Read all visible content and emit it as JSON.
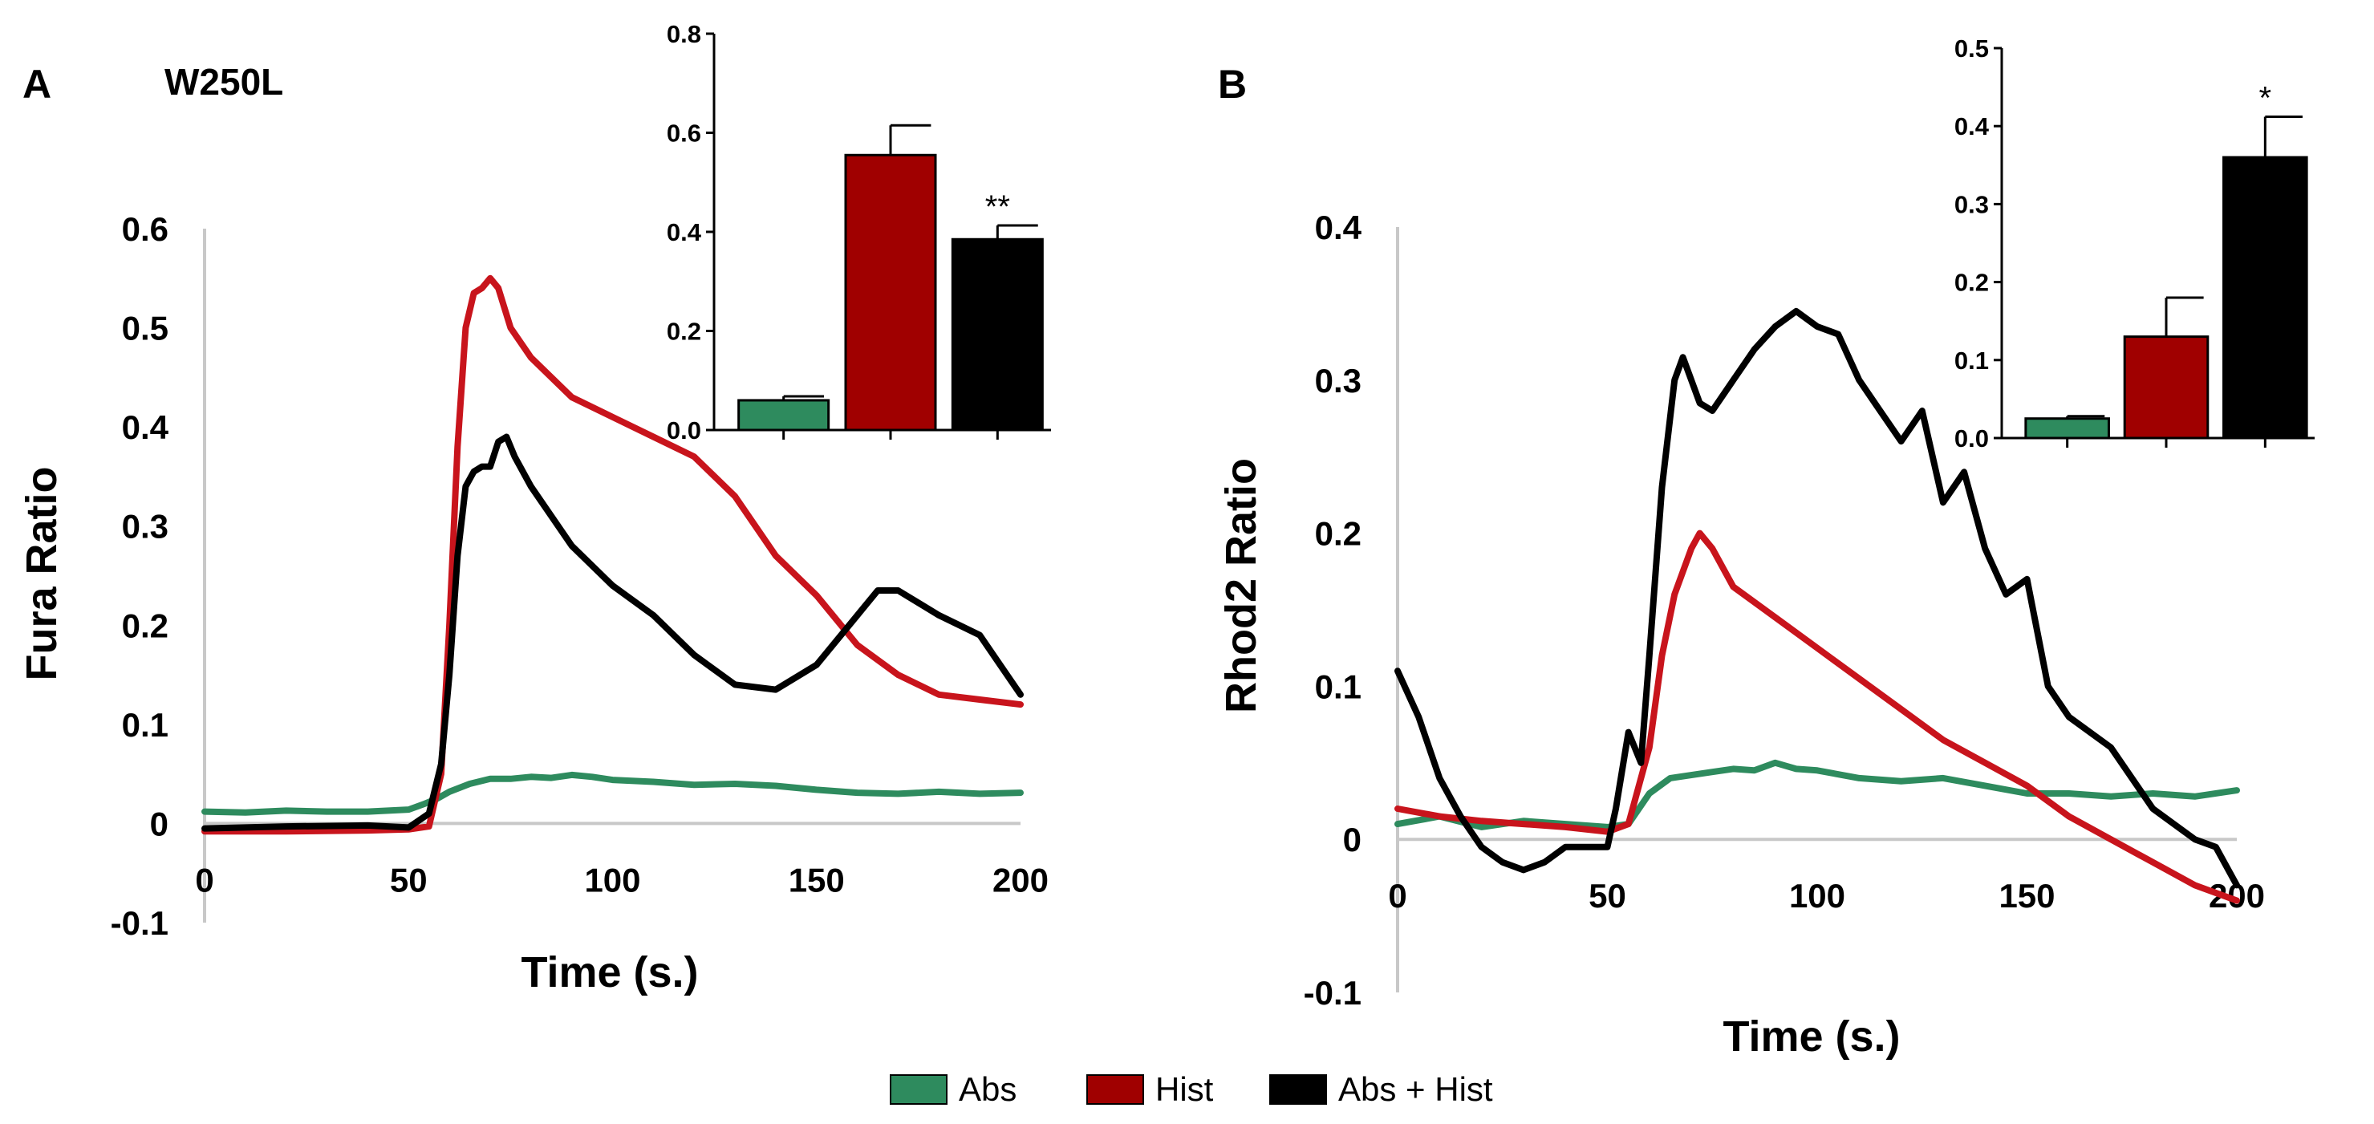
{
  "colors": {
    "abs": "#2e8b5e",
    "hist": "#c8141c",
    "abs_hist": "#000000",
    "hist_bar": "#a00000",
    "grid_axis": "#c8c8c8"
  },
  "legend": [
    {
      "label": "Abs",
      "color": "#2e8b5e"
    },
    {
      "label": "Hist",
      "color": "#a00000"
    },
    {
      "label": "Abs + Hist",
      "color": "#000000"
    }
  ],
  "chart_data": [
    {
      "id": "A",
      "panel_label": "A",
      "subtitle": "W250L",
      "type": "line",
      "xlabel": "Time (s.)",
      "ylabel": "Fura Ratio",
      "xlim": [
        0,
        200
      ],
      "ylim": [
        -0.1,
        0.6
      ],
      "xticks": [
        "0",
        "50",
        "100",
        "150",
        "200"
      ],
      "yticks": [
        "-0.1",
        "0",
        "0.1",
        "0.2",
        "0.3",
        "0.4",
        "0.5",
        "0.6"
      ],
      "series": [
        {
          "name": "Abs",
          "color": "#2e8b5e",
          "x": [
            0,
            10,
            20,
            30,
            40,
            50,
            54,
            57,
            60,
            65,
            70,
            75,
            80,
            85,
            90,
            95,
            100,
            110,
            120,
            130,
            140,
            150,
            160,
            170,
            180,
            190,
            200
          ],
          "y": [
            0.012,
            0.011,
            0.013,
            0.012,
            0.012,
            0.014,
            0.02,
            0.025,
            0.032,
            0.04,
            0.045,
            0.045,
            0.047,
            0.046,
            0.049,
            0.047,
            0.044,
            0.042,
            0.039,
            0.04,
            0.038,
            0.034,
            0.031,
            0.03,
            0.032,
            0.03,
            0.031
          ]
        },
        {
          "name": "Hist",
          "color": "#c8141c",
          "x": [
            0,
            20,
            40,
            50,
            55,
            58,
            60,
            62,
            64,
            66,
            68,
            70,
            72,
            75,
            80,
            90,
            100,
            110,
            120,
            130,
            140,
            150,
            160,
            170,
            180,
            190,
            200
          ],
          "y": [
            -0.008,
            -0.008,
            -0.007,
            -0.006,
            -0.003,
            0.05,
            0.2,
            0.38,
            0.5,
            0.535,
            0.54,
            0.55,
            0.54,
            0.5,
            0.47,
            0.43,
            0.41,
            0.39,
            0.37,
            0.33,
            0.27,
            0.23,
            0.18,
            0.15,
            0.13,
            0.125,
            0.12
          ]
        },
        {
          "name": "Abs + Hist",
          "color": "#000000",
          "x": [
            0,
            20,
            40,
            50,
            55,
            58,
            60,
            62,
            64,
            66,
            68,
            70,
            72,
            74,
            76,
            80,
            90,
            100,
            110,
            120,
            130,
            140,
            150,
            160,
            165,
            170,
            180,
            190,
            195,
            200
          ],
          "y": [
            -0.005,
            -0.003,
            -0.002,
            -0.004,
            0.01,
            0.06,
            0.15,
            0.27,
            0.34,
            0.355,
            0.36,
            0.36,
            0.385,
            0.39,
            0.37,
            0.34,
            0.28,
            0.24,
            0.21,
            0.17,
            0.14,
            0.135,
            0.16,
            0.21,
            0.235,
            0.235,
            0.21,
            0.19,
            0.16,
            0.13
          ]
        }
      ],
      "inset": {
        "type": "bar",
        "categories": [
          "Abs",
          "Hist",
          "Abs + Hist"
        ],
        "values": [
          0.06,
          0.555,
          0.385
        ],
        "errors": [
          0.008,
          0.06,
          0.028
        ],
        "colors": [
          "#2e8b5e",
          "#a00000",
          "#000000"
        ],
        "ylim": [
          0,
          0.8
        ],
        "yticks": [
          "0.0",
          "0.2",
          "0.4",
          "0.6",
          "0.8"
        ],
        "significance": [
          "",
          "",
          "**"
        ]
      }
    },
    {
      "id": "B",
      "panel_label": "B",
      "subtitle": "",
      "type": "line",
      "xlabel": "Time (s.)",
      "ylabel": "Rhod2 Ratio",
      "xlim": [
        0,
        200
      ],
      "ylim": [
        -0.1,
        0.4
      ],
      "xticks": [
        "0",
        "50",
        "100",
        "150",
        "200"
      ],
      "yticks": [
        "-0.1",
        "0",
        "0.1",
        "0.2",
        "0.3",
        "0.4"
      ],
      "series": [
        {
          "name": "Abs",
          "color": "#2e8b5e",
          "x": [
            0,
            10,
            20,
            30,
            40,
            50,
            55,
            60,
            65,
            70,
            75,
            80,
            85,
            90,
            95,
            100,
            110,
            120,
            130,
            140,
            150,
            160,
            170,
            180,
            190,
            200
          ],
          "y": [
            0.01,
            0.015,
            0.008,
            0.012,
            0.01,
            0.008,
            0.01,
            0.03,
            0.04,
            0.042,
            0.044,
            0.046,
            0.045,
            0.05,
            0.046,
            0.045,
            0.04,
            0.038,
            0.04,
            0.035,
            0.03,
            0.03,
            0.028,
            0.03,
            0.028,
            0.032
          ]
        },
        {
          "name": "Hist",
          "color": "#c8141c",
          "x": [
            0,
            10,
            20,
            30,
            40,
            50,
            55,
            60,
            63,
            66,
            70,
            72,
            75,
            80,
            90,
            100,
            110,
            120,
            130,
            140,
            150,
            160,
            170,
            180,
            190,
            200
          ],
          "y": [
            0.02,
            0.015,
            0.012,
            0.01,
            0.008,
            0.005,
            0.01,
            0.06,
            0.12,
            0.16,
            0.19,
            0.2,
            0.19,
            0.165,
            0.145,
            0.125,
            0.105,
            0.085,
            0.065,
            0.05,
            0.035,
            0.015,
            0.0,
            -0.015,
            -0.03,
            -0.04
          ]
        },
        {
          "name": "Abs + Hist",
          "color": "#000000",
          "x": [
            0,
            5,
            10,
            15,
            20,
            25,
            30,
            35,
            40,
            45,
            50,
            52,
            55,
            58,
            60,
            63,
            66,
            68,
            70,
            72,
            75,
            80,
            85,
            90,
            95,
            100,
            105,
            110,
            115,
            120,
            125,
            130,
            135,
            140,
            145,
            150,
            155,
            160,
            170,
            180,
            190,
            195,
            200
          ],
          "y": [
            0.11,
            0.08,
            0.04,
            0.015,
            -0.005,
            -0.015,
            -0.02,
            -0.015,
            -0.005,
            -0.005,
            -0.005,
            0.02,
            0.07,
            0.05,
            0.12,
            0.23,
            0.3,
            0.315,
            0.3,
            0.285,
            0.28,
            0.3,
            0.32,
            0.335,
            0.345,
            0.335,
            0.33,
            0.3,
            0.28,
            0.26,
            0.28,
            0.22,
            0.24,
            0.19,
            0.16,
            0.17,
            0.1,
            0.08,
            0.06,
            0.02,
            0.0,
            -0.005,
            -0.03
          ]
        }
      ],
      "inset": {
        "type": "bar",
        "categories": [
          "Abs",
          "Hist",
          "Abs + Hist"
        ],
        "values": [
          0.025,
          0.13,
          0.36
        ],
        "errors": [
          0.003,
          0.05,
          0.052
        ],
        "colors": [
          "#2e8b5e",
          "#a00000",
          "#000000"
        ],
        "ylim": [
          0,
          0.5
        ],
        "yticks": [
          "0.0",
          "0.1",
          "0.2",
          "0.3",
          "0.4",
          "0.5"
        ],
        "significance": [
          "",
          "",
          "*"
        ]
      }
    }
  ]
}
